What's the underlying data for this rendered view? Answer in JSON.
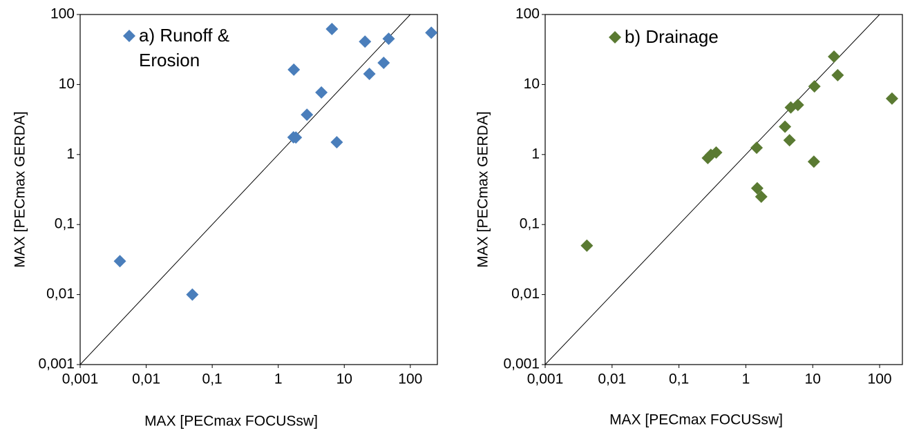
{
  "chart_data": [
    {
      "type": "scatter",
      "xscale": "log",
      "yscale": "log",
      "grid": false,
      "legend": "top-left",
      "x_label": "MAX [PECmax FOCUSsw]",
      "y_label": "MAX [PECmax GERDA]",
      "xlim": [
        0.001,
        257
      ],
      "ylim": [
        0.001,
        100
      ],
      "xticks": [
        {
          "value": 0.001,
          "label": "0,001"
        },
        {
          "value": 0.01,
          "label": "0,01"
        },
        {
          "value": 0.1,
          "label": "0,1"
        },
        1,
        10,
        100
      ],
      "yticks": [
        {
          "value": 0.001,
          "label": "0,001"
        },
        {
          "value": 0.01,
          "label": "0,01"
        },
        {
          "value": 0.1,
          "label": "0,1"
        },
        1,
        10,
        100
      ],
      "series": [
        {
          "name": "a) Runoff & Erosion",
          "color": "#4a7ebb",
          "x": [
            0.004,
            0.05,
            1.72,
            1.7,
            1.85,
            2.72,
            4.5,
            7.7,
            6.5,
            20.6,
            24,
            39.5,
            47,
            208
          ],
          "values": [
            0.03,
            0.01,
            16.3,
            1.76,
            1.75,
            3.7,
            7.7,
            1.5,
            62,
            41,
            14.2,
            20.4,
            45,
            55
          ]
        }
      ]
    },
    {
      "type": "scatter",
      "xscale": "log",
      "yscale": "log",
      "grid": false,
      "legend": "top-left",
      "x_label": "MAX [PECmax FOCUSsw]",
      "y_label": "MAX [PECmax GERDA]",
      "xlim": [
        0.001,
        219
      ],
      "ylim": [
        0.001,
        100
      ],
      "xticks": [
        {
          "value": 0.001,
          "label": "0,001"
        },
        {
          "value": 0.01,
          "label": "0,01"
        },
        {
          "value": 0.1,
          "label": "0,1"
        },
        1,
        10,
        100
      ],
      "yticks": [
        {
          "value": 0.001,
          "label": "0,001"
        },
        {
          "value": 0.01,
          "label": "0,01"
        },
        {
          "value": 0.1,
          "label": "0,1"
        },
        1,
        10,
        100
      ],
      "series": [
        {
          "name": "b) Drainage",
          "color": "#5a7a32",
          "x": [
            0.0042,
            0.27,
            0.3,
            0.36,
            1.45,
            1.48,
            1.7,
            3.85,
            4.5,
            4.7,
            6.0,
            10.4,
            10.6,
            20.8,
            23.6,
            153
          ],
          "values": [
            0.05,
            0.89,
            0.99,
            1.07,
            1.25,
            0.33,
            0.25,
            2.5,
            1.6,
            4.7,
            5.1,
            0.79,
            9.4,
            25,
            13.6,
            6.3
          ]
        }
      ]
    }
  ]
}
